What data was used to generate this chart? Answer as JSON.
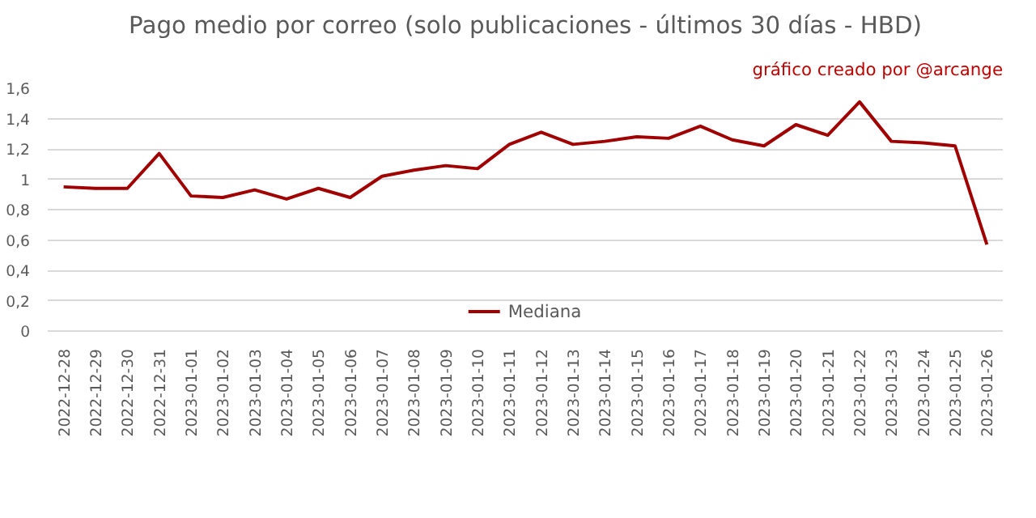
{
  "chart_data": {
    "type": "line",
    "title": "Pago medio por correo (solo publicaciones - últimos 30 días - HBD)",
    "annotations": [
      "gráfico creado por @arcange"
    ],
    "categories": [
      "2022-12-28",
      "2022-12-29",
      "2022-12-30",
      "2022-12-31",
      "2023-01-01",
      "2023-01-02",
      "2023-01-03",
      "2023-01-04",
      "2023-01-05",
      "2023-01-06",
      "2023-01-07",
      "2023-01-08",
      "2023-01-09",
      "2023-01-10",
      "2023-01-11",
      "2023-01-12",
      "2023-01-13",
      "2023-01-14",
      "2023-01-15",
      "2023-01-16",
      "2023-01-17",
      "2023-01-18",
      "2023-01-19",
      "2023-01-20",
      "2023-01-21",
      "2023-01-22",
      "2023-01-23",
      "2023-01-24",
      "2023-01-25",
      "2023-01-26"
    ],
    "series": [
      {
        "name": "Mediana",
        "color": "#a00000",
        "values": [
          0.95,
          0.94,
          0.94,
          1.17,
          0.89,
          0.88,
          0.93,
          0.87,
          0.94,
          0.88,
          1.02,
          1.06,
          1.09,
          1.07,
          1.23,
          1.31,
          1.23,
          1.25,
          1.28,
          1.27,
          1.35,
          1.26,
          1.22,
          1.36,
          1.29,
          1.51,
          1.25,
          1.24,
          1.22,
          0.57
        ]
      }
    ],
    "ylim": [
      0,
      1.6
    ],
    "yticks": [
      {
        "value": 0,
        "label": "0"
      },
      {
        "value": 0.2,
        "label": "0,2"
      },
      {
        "value": 0.4,
        "label": "0,4"
      },
      {
        "value": 0.6,
        "label": "0,6"
      },
      {
        "value": 0.8,
        "label": "0,8"
      },
      {
        "value": 1,
        "label": "1"
      },
      {
        "value": 1.2,
        "label": "1,2"
      },
      {
        "value": 1.4,
        "label": "1,4"
      },
      {
        "value": 1.6,
        "label": "1,6"
      }
    ],
    "grid": "y",
    "legend": "bottom",
    "line_style": "solid"
  }
}
